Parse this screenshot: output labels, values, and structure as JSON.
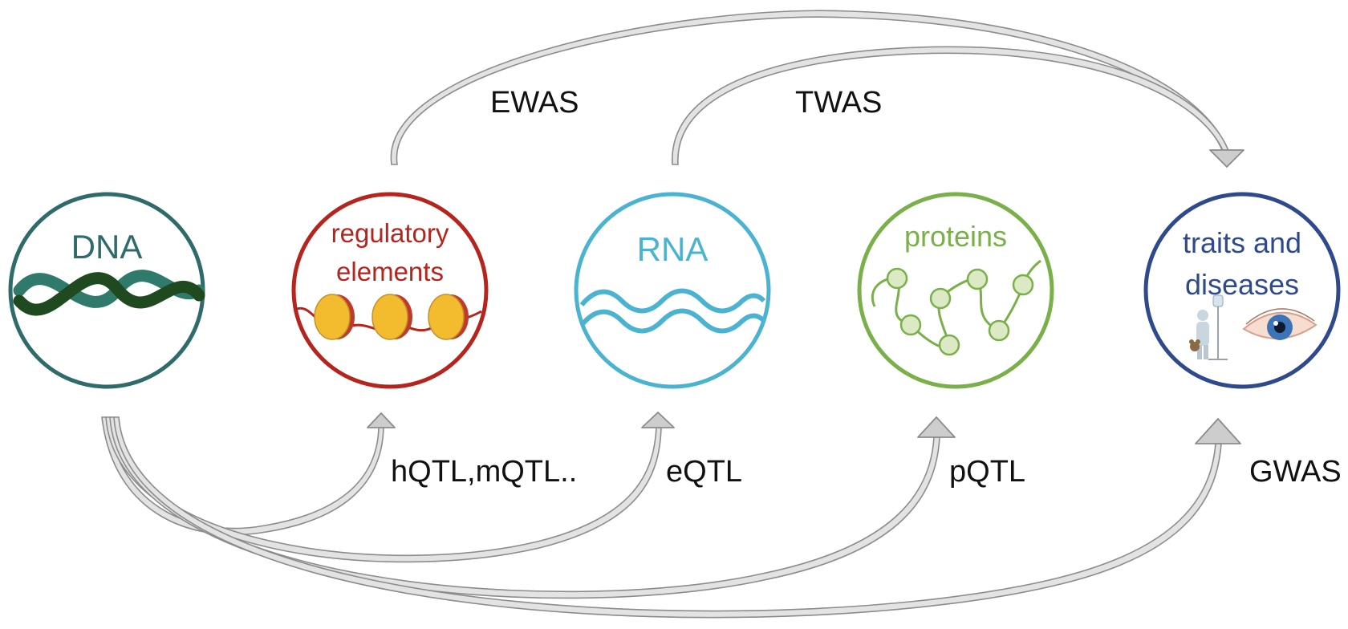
{
  "nodes": [
    {
      "id": "dna",
      "lines": [
        "DNA"
      ],
      "color": "#2f6b6b"
    },
    {
      "id": "regulatory-elements",
      "lines": [
        "regulatory",
        "elements"
      ],
      "color": "#b5251d"
    },
    {
      "id": "rna",
      "lines": [
        "RNA"
      ],
      "color": "#4ab3d1"
    },
    {
      "id": "proteins",
      "lines": [
        "proteins"
      ],
      "color": "#7ab04a"
    },
    {
      "id": "traits-and-diseases",
      "lines": [
        "traits and",
        "diseases"
      ],
      "color": "#2f4a8c"
    }
  ],
  "associations": {
    "top": [
      "EWAS",
      "TWAS"
    ],
    "bottom": [
      "hQTL,mQTL..",
      "eQTL",
      "pQTL",
      "GWAS"
    ]
  },
  "colors": {
    "arrow_stroke": "#8c8c8c",
    "arrow_fill": "#e3e3e3",
    "dna_strand_dark": "#1f4a1f",
    "dna_strand_light": "#2f7a6b",
    "nucleosome": "#f2bc2e",
    "protein_bead": "#dbe9c4"
  },
  "icons": [
    "dna-helix-icon",
    "nucleosome-icon",
    "rna-wave-icon",
    "protein-chain-icon",
    "patient-icon",
    "eye-icon"
  ]
}
